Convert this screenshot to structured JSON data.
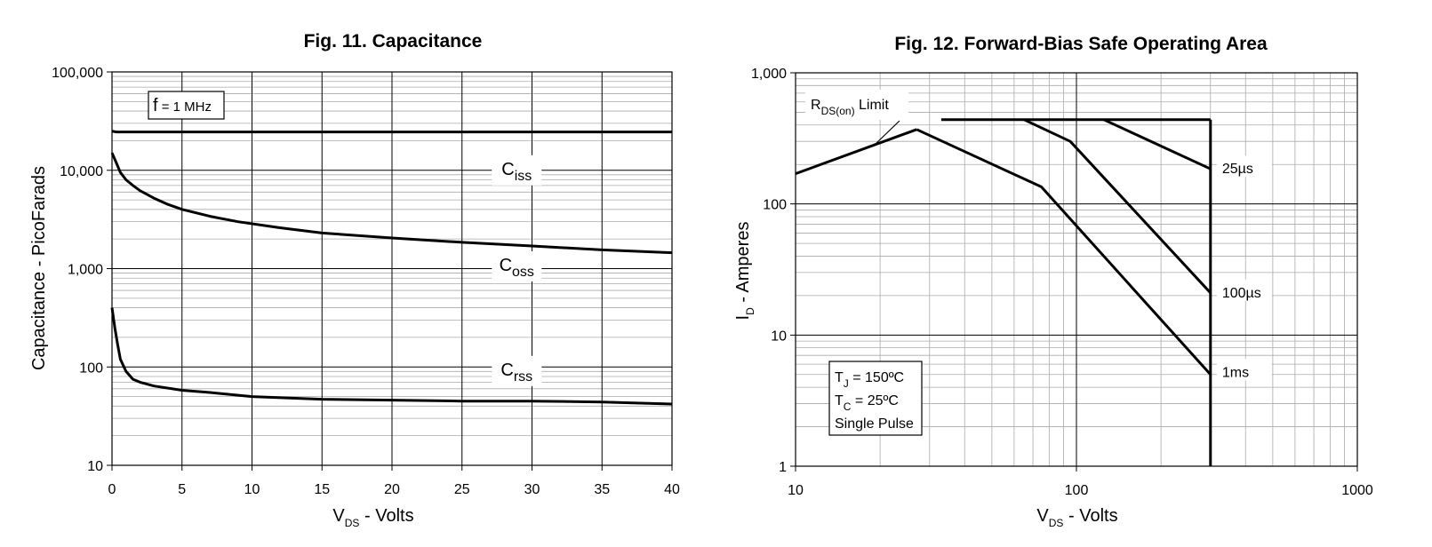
{
  "chart_data": [
    {
      "type": "line",
      "title": "Fig. 11. Capacitance",
      "xlabel": {
        "main": "V",
        "sub": "DS",
        "rest": " - Volts"
      },
      "ylabel": "Capacitance - PicoFarads",
      "x_scale": "linear",
      "y_scale": "log",
      "xlim": [
        0,
        40
      ],
      "ylim": [
        10,
        100000
      ],
      "grid": true,
      "x_ticks": [
        0,
        5,
        10,
        15,
        20,
        25,
        30,
        35,
        40
      ],
      "x_tick_labels": [
        "0",
        "5",
        "10",
        "15",
        "20",
        "25",
        "30",
        "35",
        "40"
      ],
      "y_ticks": [
        10,
        100,
        1000,
        10000,
        100000
      ],
      "y_tick_labels": [
        "10",
        "100",
        "1,000",
        "10,000",
        "100,000"
      ],
      "annotation": {
        "main": "f",
        "rest": " = 1 MHz"
      },
      "series": [
        {
          "name": "Ciss",
          "label_main": "C",
          "label_sub": "iss",
          "label_x": 27,
          "label_y": 9000,
          "x": [
            0,
            0.3,
            1,
            5,
            10,
            20,
            30,
            40
          ],
          "y": [
            25000,
            24500,
            24500,
            24500,
            24500,
            24500,
            24500,
            24500
          ]
        },
        {
          "name": "Coss",
          "label_main": "C",
          "label_sub": "oss",
          "label_x": 27,
          "label_y": 950,
          "x": [
            0,
            0.3,
            0.6,
            1,
            1.5,
            2,
            3,
            4,
            5,
            7,
            9,
            12,
            15,
            20,
            25,
            30,
            35,
            40
          ],
          "y": [
            15000,
            12000,
            9500,
            8000,
            7000,
            6200,
            5200,
            4500,
            4000,
            3400,
            3000,
            2600,
            2300,
            2050,
            1850,
            1700,
            1550,
            1450
          ]
        },
        {
          "name": "Crss",
          "label_main": "C",
          "label_sub": "rss",
          "label_x": 27,
          "label_y": 82,
          "x": [
            0,
            0.2,
            0.4,
            0.6,
            1,
            1.5,
            2,
            3,
            5,
            7,
            10,
            15,
            20,
            25,
            30,
            35,
            40
          ],
          "y": [
            400,
            250,
            170,
            120,
            90,
            75,
            70,
            64,
            58,
            55,
            50,
            47,
            46,
            45,
            45,
            44,
            42
          ]
        }
      ]
    },
    {
      "type": "line",
      "title": "Fig. 12. Forward-Bias Safe Operating Area",
      "xlabel": {
        "main": "V",
        "sub": "DS",
        "rest": " - Volts"
      },
      "ylabel": {
        "main": "I",
        "sub": "D",
        "rest": " - Amperes"
      },
      "x_scale": "log",
      "y_scale": "log",
      "xlim": [
        10,
        1000
      ],
      "ylim": [
        1,
        1000
      ],
      "grid": true,
      "x_ticks": [
        10,
        100,
        1000
      ],
      "x_tick_labels": [
        "10",
        "100",
        "1000"
      ],
      "y_ticks": [
        1,
        10,
        100,
        1000
      ],
      "y_tick_labels": [
        "1",
        "10",
        "100",
        "1,000"
      ],
      "rds_label": {
        "main": "R",
        "sub": "DS(on)",
        "rest": " Limit"
      },
      "conditions": [
        {
          "main": "T",
          "sub": "J",
          "rest": " = 150ºC"
        },
        {
          "main": "T",
          "sub": "C",
          "rest": "  = 25ºC"
        },
        {
          "main": "Single Pulse",
          "sub": "",
          "rest": ""
        }
      ],
      "series": [
        {
          "name": "RDS(on) Limit",
          "x": [
            10,
            27
          ],
          "y": [
            170,
            370
          ]
        },
        {
          "name": "Current Limit",
          "x": [
            33,
            300
          ],
          "y": [
            440,
            440
          ]
        },
        {
          "name": "Voltage Limit",
          "x": [
            300,
            300
          ],
          "y": [
            440,
            1
          ]
        },
        {
          "name": "25µs",
          "label": "25µs",
          "label_x": 330,
          "label_y": 185,
          "x": [
            125,
            300
          ],
          "y": [
            440,
            185
          ]
        },
        {
          "name": "100µs",
          "label": "100µs",
          "label_x": 330,
          "label_y": 21,
          "x": [
            65,
            95,
            300
          ],
          "y": [
            440,
            300,
            21
          ]
        },
        {
          "name": "1ms",
          "label": "1ms",
          "label_x": 330,
          "label_y": 5.2,
          "x": [
            27,
            75,
            300
          ],
          "y": [
            370,
            135,
            5
          ]
        }
      ]
    }
  ]
}
